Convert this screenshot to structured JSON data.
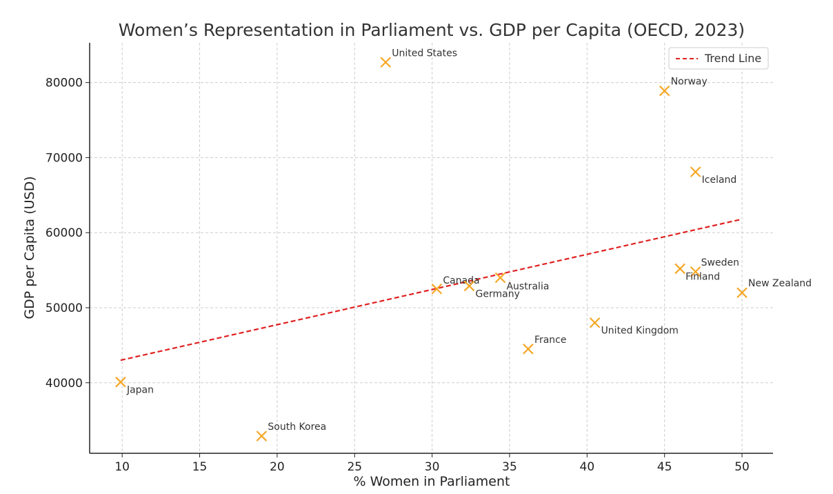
{
  "chart_data": {
    "type": "scatter",
    "title": "Women’s Representation in Parliament vs. GDP per Capita (OECD, 2023)",
    "xlabel": "% Women in Parliament",
    "ylabel": "GDP per Capita (USD)",
    "xlim": [
      7.9,
      52
    ],
    "ylim": [
      30600,
      85300
    ],
    "xticks": [
      10,
      15,
      20,
      25,
      30,
      35,
      40,
      45,
      50
    ],
    "yticks": [
      40000,
      50000,
      60000,
      70000,
      80000
    ],
    "grid": true,
    "legend_position": "top-right",
    "marker_color": "#f5a623",
    "trend_color": "#e02020",
    "points": [
      {
        "label": "United States",
        "x": 27.0,
        "y": 82700
      },
      {
        "label": "Norway",
        "x": 45.0,
        "y": 78900
      },
      {
        "label": "Iceland",
        "x": 47.0,
        "y": 68100
      },
      {
        "label": "Sweden",
        "x": 47.0,
        "y": 54800
      },
      {
        "label": "Finland",
        "x": 46.0,
        "y": 55200
      },
      {
        "label": "New Zealand",
        "x": 50.0,
        "y": 52000
      },
      {
        "label": "Canada",
        "x": 30.3,
        "y": 52500
      },
      {
        "label": "Germany",
        "x": 32.4,
        "y": 52900
      },
      {
        "label": "Australia",
        "x": 34.4,
        "y": 54000
      },
      {
        "label": "United Kingdom",
        "x": 40.5,
        "y": 48000
      },
      {
        "label": "France",
        "x": 36.2,
        "y": 44500
      },
      {
        "label": "Japan",
        "x": 9.9,
        "y": 40100
      },
      {
        "label": "South Korea",
        "x": 19.0,
        "y": 32900
      }
    ],
    "trend_line": {
      "name": "Trend Line",
      "x": [
        9.9,
        50.0
      ],
      "y": [
        43000,
        61800
      ]
    }
  }
}
